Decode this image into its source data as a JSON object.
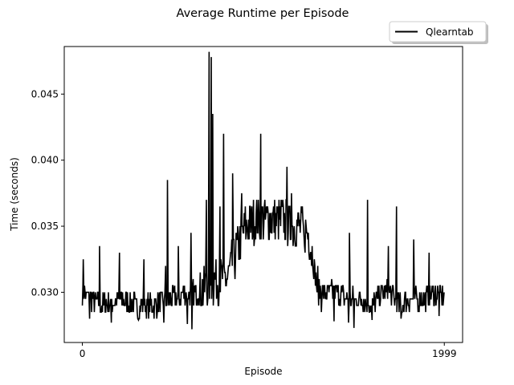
{
  "chart_data": {
    "type": "line",
    "title": "Average Runtime per Episode",
    "xlabel": "Episode",
    "ylabel": "Time (seconds)",
    "xlim": [
      -100,
      2100
    ],
    "ylim": [
      0.0262,
      0.0486
    ],
    "x_ticks": [
      0,
      1999
    ],
    "x_tick_labels": [
      "0",
      "1999"
    ],
    "y_ticks": [
      0.03,
      0.035,
      0.04,
      0.045
    ],
    "y_tick_labels": [
      "0.030",
      "0.035",
      "0.040",
      "0.045"
    ],
    "grid": false,
    "legend": {
      "position": "top-right",
      "entries": [
        "Qlearntab"
      ]
    },
    "series": [
      {
        "name": "Qlearntab",
        "color": "#000000",
        "x": [
          0,
          100,
          200,
          300,
          400,
          500,
          600,
          650,
          700,
          750,
          800,
          850,
          900,
          950,
          1000,
          1050,
          1100,
          1150,
          1200,
          1250,
          1300,
          1350,
          1400,
          1450,
          1500,
          1550,
          1600,
          1650,
          1700,
          1750,
          1800,
          1850,
          1900,
          1950,
          1999
        ],
        "y": [
          0.03,
          0.029,
          0.0295,
          0.029,
          0.029,
          0.0295,
          0.03,
          0.03,
          0.0305,
          0.031,
          0.031,
          0.033,
          0.035,
          0.0355,
          0.0355,
          0.0355,
          0.0355,
          0.035,
          0.035,
          0.0345,
          0.03,
          0.03,
          0.03,
          0.0295,
          0.0295,
          0.0295,
          0.029,
          0.03,
          0.03,
          0.029,
          0.0295,
          0.0295,
          0.0295,
          0.03,
          0.0295
        ],
        "peaks": [
          {
            "x": 5,
            "y": 0.0325
          },
          {
            "x": 95,
            "y": 0.0335
          },
          {
            "x": 205,
            "y": 0.033
          },
          {
            "x": 340,
            "y": 0.0325
          },
          {
            "x": 460,
            "y": 0.032
          },
          {
            "x": 470,
            "y": 0.0385
          },
          {
            "x": 530,
            "y": 0.0335
          },
          {
            "x": 600,
            "y": 0.0345
          },
          {
            "x": 685,
            "y": 0.037
          },
          {
            "x": 700,
            "y": 0.0482
          },
          {
            "x": 712,
            "y": 0.0478
          },
          {
            "x": 720,
            "y": 0.0435
          },
          {
            "x": 760,
            "y": 0.0365
          },
          {
            "x": 780,
            "y": 0.042
          },
          {
            "x": 830,
            "y": 0.039
          },
          {
            "x": 880,
            "y": 0.0375
          },
          {
            "x": 985,
            "y": 0.042
          },
          {
            "x": 1130,
            "y": 0.0395
          },
          {
            "x": 1155,
            "y": 0.0375
          },
          {
            "x": 1225,
            "y": 0.034
          },
          {
            "x": 1300,
            "y": 0.032
          },
          {
            "x": 1475,
            "y": 0.0345
          },
          {
            "x": 1575,
            "y": 0.037
          },
          {
            "x": 1690,
            "y": 0.0335
          },
          {
            "x": 1735,
            "y": 0.0365
          },
          {
            "x": 1830,
            "y": 0.034
          },
          {
            "x": 1915,
            "y": 0.033
          }
        ],
        "troughs": [
          {
            "x": 40,
            "y": 0.028
          },
          {
            "x": 160,
            "y": 0.0277
          },
          {
            "x": 310,
            "y": 0.0279
          },
          {
            "x": 450,
            "y": 0.0277
          },
          {
            "x": 580,
            "y": 0.0276
          },
          {
            "x": 605,
            "y": 0.0272
          },
          {
            "x": 660,
            "y": 0.029
          },
          {
            "x": 1320,
            "y": 0.0285
          },
          {
            "x": 1390,
            "y": 0.0278
          },
          {
            "x": 1470,
            "y": 0.0277
          },
          {
            "x": 1500,
            "y": 0.0273
          },
          {
            "x": 1600,
            "y": 0.0279
          },
          {
            "x": 1760,
            "y": 0.028
          },
          {
            "x": 1970,
            "y": 0.0282
          }
        ]
      }
    ]
  }
}
